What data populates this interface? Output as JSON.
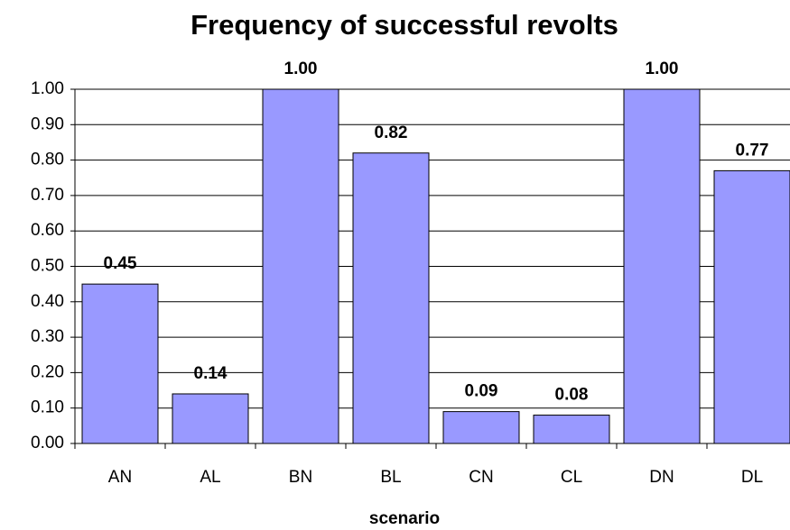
{
  "chart_data": {
    "type": "bar",
    "title": "Frequency of successful revolts",
    "x_label": "scenario",
    "categories": [
      "AN",
      "AL",
      "BN",
      "BL",
      "CN",
      "CL",
      "DN",
      "DL"
    ],
    "values": [
      0.45,
      0.14,
      1.0,
      0.82,
      0.09,
      0.08,
      1.0,
      0.77
    ],
    "value_labels": [
      "0.45",
      "0.14",
      "1.00",
      "0.82",
      "0.09",
      "0.08",
      "1.00",
      "0.77"
    ],
    "color": "#9999ff",
    "ylim": [
      0,
      1
    ],
    "yticks": [
      {
        "value": 0,
        "label": "0.00"
      },
      {
        "value": 0.1,
        "label": "0.10"
      },
      {
        "value": 0.2,
        "label": "0.20"
      },
      {
        "value": 0.3,
        "label": "0.30"
      },
      {
        "value": 0.4,
        "label": "0.40"
      },
      {
        "value": 0.5,
        "label": "0.50"
      },
      {
        "value": 0.6,
        "label": "0.60"
      },
      {
        "value": 0.7,
        "label": "0.70"
      },
      {
        "value": 0.8,
        "label": "0.80"
      },
      {
        "value": 0.9,
        "label": "0.90"
      },
      {
        "value": 1,
        "label": "1.00"
      }
    ],
    "grid": true
  }
}
